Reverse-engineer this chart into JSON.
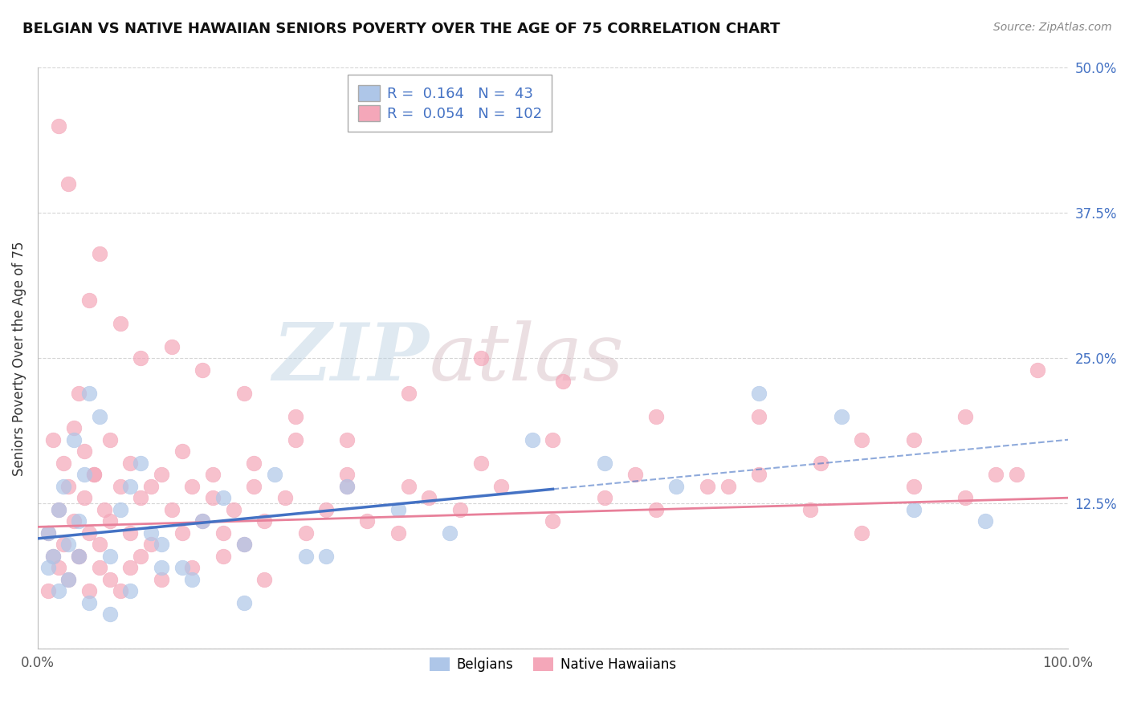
{
  "title": "BELGIAN VS NATIVE HAWAIIAN SENIORS POVERTY OVER THE AGE OF 75 CORRELATION CHART",
  "source": "Source: ZipAtlas.com",
  "ylabel": "Seniors Poverty Over the Age of 75",
  "xlim": [
    0,
    100
  ],
  "ylim": [
    0,
    50
  ],
  "belgian_R": 0.164,
  "belgian_N": 43,
  "hawaiian_R": 0.054,
  "hawaiian_N": 102,
  "belgian_color": "#aec6e8",
  "hawaiian_color": "#f4a7b9",
  "belgian_trend_color": "#4472c4",
  "hawaiian_trend_color": "#e8809a",
  "background_color": "#ffffff",
  "grid_color": "#cccccc",
  "legend_R_color": "#4472c4",
  "watermark_zip_color": "#c8d8e8",
  "watermark_atlas_color": "#d8c8d0",
  "belgian_x": [
    1.0,
    1.5,
    2.0,
    2.5,
    3.0,
    3.5,
    4.0,
    4.5,
    5.0,
    6.0,
    7.0,
    8.0,
    9.0,
    10.0,
    11.0,
    12.0,
    14.0,
    16.0,
    18.0,
    20.0,
    23.0,
    26.0,
    30.0,
    35.0,
    40.0,
    48.0,
    55.0,
    62.0,
    70.0,
    78.0,
    85.0,
    92.0,
    1.0,
    2.0,
    3.0,
    4.0,
    5.0,
    7.0,
    9.0,
    12.0,
    15.0,
    20.0,
    28.0
  ],
  "belgian_y": [
    10.0,
    8.0,
    12.0,
    14.0,
    9.0,
    18.0,
    11.0,
    15.0,
    22.0,
    20.0,
    8.0,
    12.0,
    14.0,
    16.0,
    10.0,
    9.0,
    7.0,
    11.0,
    13.0,
    9.0,
    15.0,
    8.0,
    14.0,
    12.0,
    10.0,
    18.0,
    16.0,
    14.0,
    22.0,
    20.0,
    12.0,
    11.0,
    7.0,
    5.0,
    6.0,
    8.0,
    4.0,
    3.0,
    5.0,
    7.0,
    6.0,
    4.0,
    8.0
  ],
  "hawaiian_x": [
    1.0,
    1.5,
    2.0,
    2.5,
    3.0,
    3.5,
    4.0,
    4.5,
    5.0,
    5.5,
    6.0,
    6.5,
    7.0,
    8.0,
    9.0,
    10.0,
    11.0,
    12.0,
    13.0,
    14.0,
    15.0,
    16.0,
    17.0,
    18.0,
    19.0,
    20.0,
    21.0,
    22.0,
    24.0,
    26.0,
    28.0,
    30.0,
    32.0,
    35.0,
    38.0,
    41.0,
    45.0,
    50.0,
    55.0,
    60.0,
    65.0,
    70.0,
    75.0,
    80.0,
    85.0,
    90.0,
    95.0,
    1.0,
    2.0,
    3.0,
    4.0,
    5.0,
    6.0,
    7.0,
    8.0,
    9.0,
    10.0,
    12.0,
    15.0,
    18.0,
    22.0,
    1.5,
    2.5,
    3.5,
    4.5,
    5.5,
    7.0,
    9.0,
    11.0,
    14.0,
    17.0,
    21.0,
    25.0,
    30.0,
    36.0,
    43.0,
    50.0,
    58.0,
    67.0,
    76.0,
    85.0,
    93.0,
    2.0,
    3.0,
    4.0,
    5.0,
    6.0,
    8.0,
    10.0,
    13.0,
    16.0,
    20.0,
    25.0,
    30.0,
    36.0,
    43.0,
    51.0,
    60.0,
    70.0,
    80.0,
    90.0,
    97.0
  ],
  "hawaiian_y": [
    10.0,
    8.0,
    12.0,
    9.0,
    14.0,
    11.0,
    8.0,
    13.0,
    10.0,
    15.0,
    9.0,
    12.0,
    11.0,
    14.0,
    10.0,
    13.0,
    9.0,
    15.0,
    12.0,
    10.0,
    14.0,
    11.0,
    13.0,
    10.0,
    12.0,
    9.0,
    14.0,
    11.0,
    13.0,
    10.0,
    12.0,
    14.0,
    11.0,
    10.0,
    13.0,
    12.0,
    14.0,
    11.0,
    13.0,
    12.0,
    14.0,
    20.0,
    12.0,
    10.0,
    14.0,
    13.0,
    15.0,
    5.0,
    7.0,
    6.0,
    8.0,
    5.0,
    7.0,
    6.0,
    5.0,
    7.0,
    8.0,
    6.0,
    7.0,
    8.0,
    6.0,
    18.0,
    16.0,
    19.0,
    17.0,
    15.0,
    18.0,
    16.0,
    14.0,
    17.0,
    15.0,
    16.0,
    18.0,
    15.0,
    14.0,
    16.0,
    18.0,
    15.0,
    14.0,
    16.0,
    18.0,
    15.0,
    45.0,
    40.0,
    22.0,
    30.0,
    34.0,
    28.0,
    25.0,
    26.0,
    24.0,
    22.0,
    20.0,
    18.0,
    22.0,
    25.0,
    23.0,
    20.0,
    15.0,
    18.0,
    20.0,
    24.0
  ],
  "bel_trend_intercept": 9.5,
  "bel_trend_slope": 0.085,
  "haw_trend_intercept": 10.5,
  "haw_trend_slope": 0.025,
  "bel_trend_x_end": 50,
  "bel_dash_x_start": 50,
  "bel_dash_x_end": 100
}
